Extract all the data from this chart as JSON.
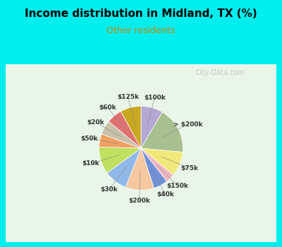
{
  "title": "Income distribution in Midland, TX (%)",
  "subtitle": "Other residents",
  "title_color": "#000000",
  "subtitle_color": "#cc8800",
  "background_outer": "#00eeee",
  "background_inner": "#e8f5e8",
  "watermark": "City-Data.com",
  "labels": [
    "$100k",
    "> $200k",
    "$75k",
    "$150k",
    "$40k",
    "$200k",
    "$30k",
    "$10k",
    "$50k",
    "$20k",
    "$60k",
    "$125k"
  ],
  "values": [
    8.5,
    18.0,
    9.5,
    3.5,
    5.5,
    11.0,
    9.0,
    10.5,
    5.0,
    5.5,
    6.0,
    8.0
  ],
  "colors": [
    "#b3a8d4",
    "#a8c090",
    "#f0e87a",
    "#f0b8c0",
    "#7090d8",
    "#f5c8a0",
    "#90b8e8",
    "#c0e060",
    "#f0a060",
    "#c8c0a8",
    "#e07070",
    "#c8a820"
  ],
  "label_colors": {
    "$100k": "#555566",
    "> $200k": "#555566",
    "$75k": "#555566",
    "$150k": "#555566",
    "$40k": "#555566",
    "$200k": "#555566",
    "$30k": "#555566",
    "$10k": "#555566",
    "$50k": "#555566",
    "$20k": "#555566",
    "$60k": "#555566",
    "$125k": "#555566"
  },
  "startangle": 90
}
